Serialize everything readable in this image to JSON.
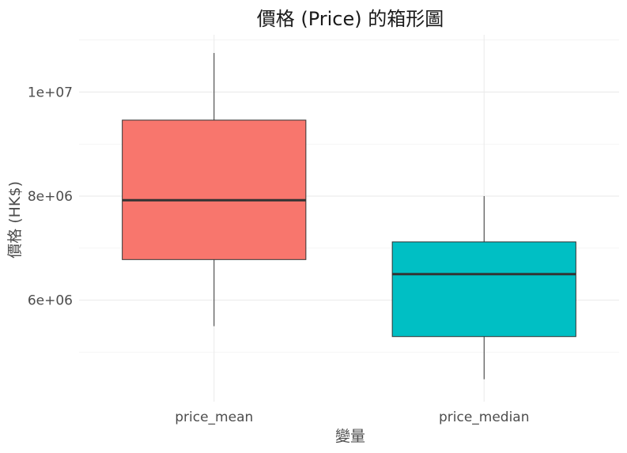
{
  "chart_data": {
    "type": "boxplot",
    "title": "價格 (Price) 的箱形圖",
    "xlabel": "變量",
    "ylabel": "價格 (HK$)",
    "ylim": [
      4050000,
      11100000
    ],
    "y_ticks": [
      6000000,
      8000000,
      10000000
    ],
    "y_tick_labels": [
      "6e+06",
      "8e+06",
      "1e+07"
    ],
    "grid": true,
    "legend": "none",
    "categories": [
      "price_mean",
      "price_median"
    ],
    "series": [
      {
        "category": "price_mean",
        "color": "#F8766D",
        "min": 5500000,
        "q1": 6780000,
        "median": 7920000,
        "q3": 9460000,
        "max": 10750000
      },
      {
        "category": "price_median",
        "color": "#00BFC4",
        "min": 4480000,
        "q1": 5300000,
        "median": 6500000,
        "q3": 7120000,
        "max": 8000000
      }
    ]
  }
}
